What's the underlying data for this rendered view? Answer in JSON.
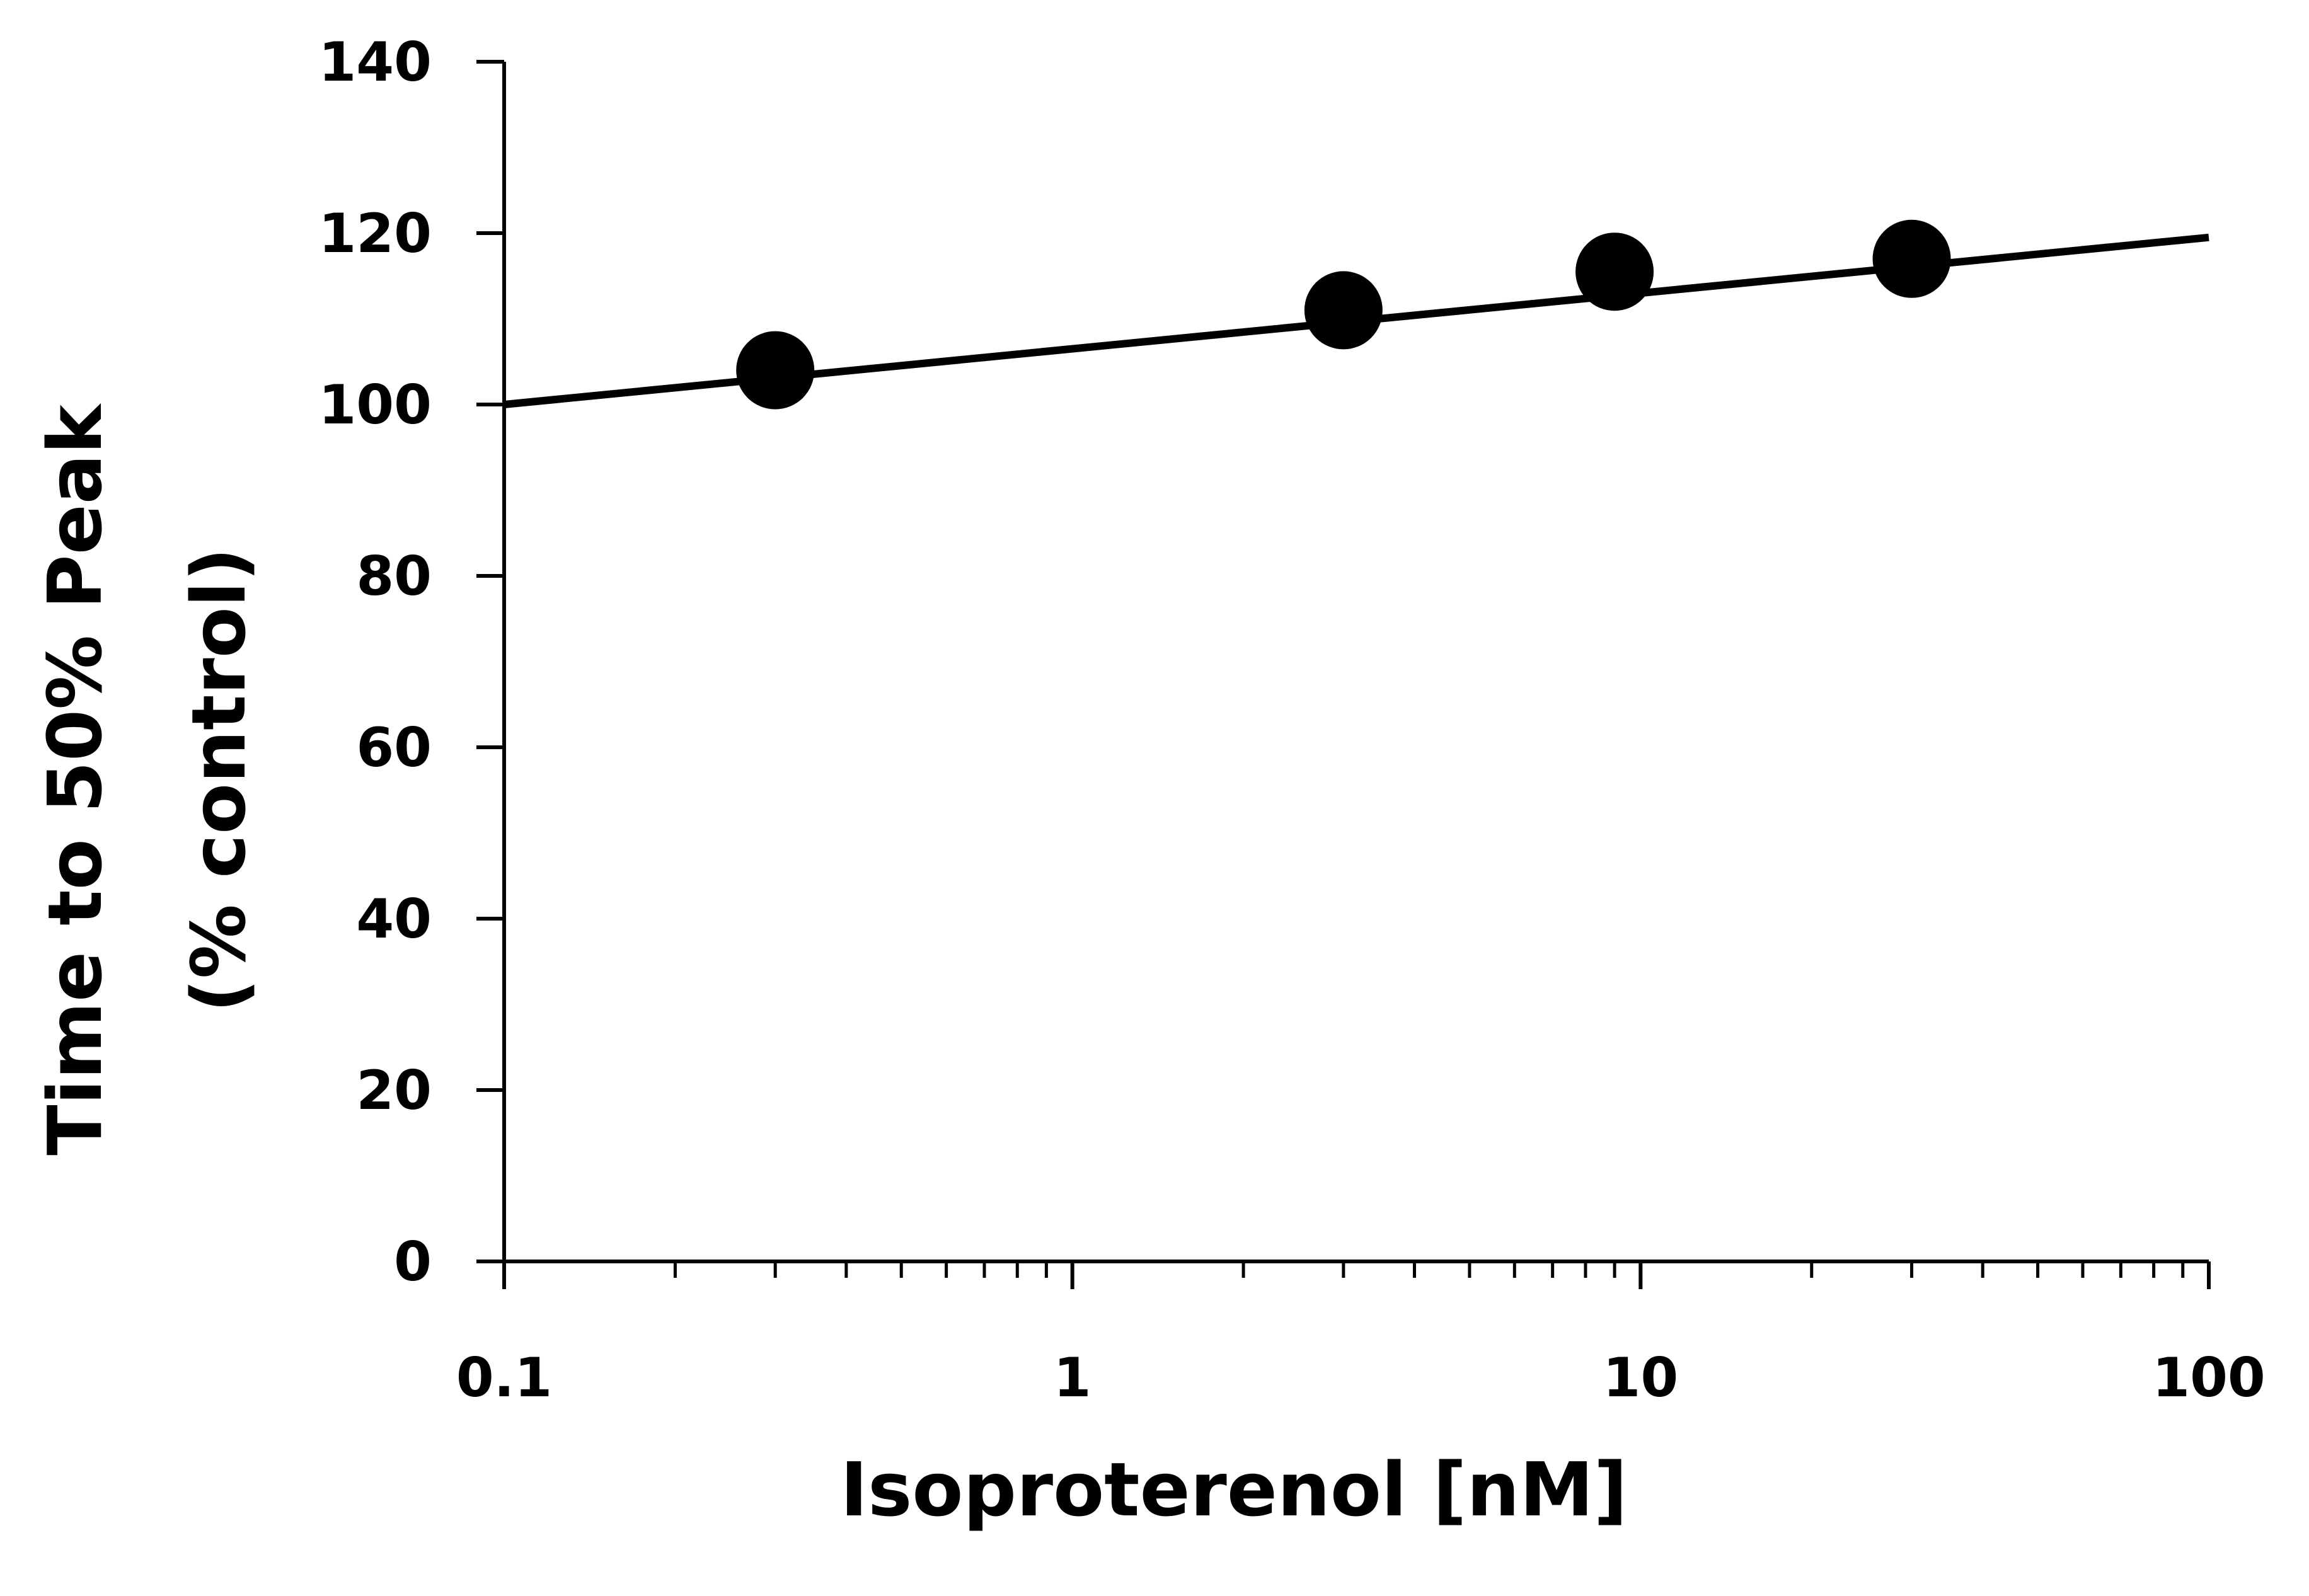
{
  "chart_data": {
    "type": "scatter",
    "title": "",
    "xlabel": "Isoproterenol [nM]",
    "ylabel_lines": [
      "Time to 50% Peak",
      "(% control)"
    ],
    "x_scale": "log",
    "xlim": [
      0.1,
      100
    ],
    "ylim": [
      0,
      140
    ],
    "x_ticks": [
      0.1,
      1,
      10,
      100
    ],
    "x_tick_labels": [
      "0.1",
      "1",
      "10",
      "100"
    ],
    "y_ticks": [
      0,
      20,
      40,
      60,
      80,
      100,
      120,
      140
    ],
    "y_tick_labels": [
      "0",
      "20",
      "40",
      "60",
      "80",
      "100",
      "120",
      "140"
    ],
    "grid": false,
    "legend": "none",
    "points": [
      {
        "x": 0.3,
        "y": 104,
        "err": 1
      },
      {
        "x": 3,
        "y": 111,
        "err": 1
      },
      {
        "x": 9,
        "y": 115.5,
        "err": 4
      },
      {
        "x": 30,
        "y": 117,
        "err": 1
      }
    ],
    "fit_line": {
      "x": [
        0.1,
        100
      ],
      "y": [
        100,
        119.5
      ]
    },
    "colors": {
      "marker": "#000000",
      "line": "#000000",
      "axis": "#000000",
      "background": "#ffffff"
    }
  }
}
